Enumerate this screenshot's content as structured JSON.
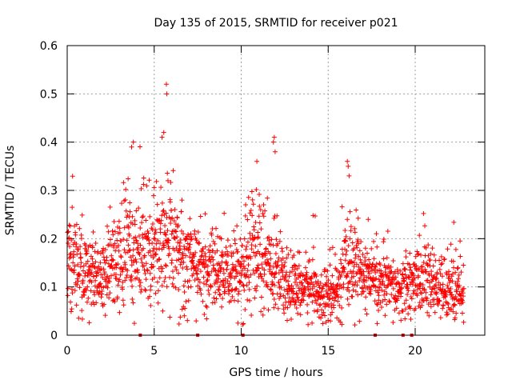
{
  "chart_data": {
    "type": "scatter",
    "title": "Day 135 of 2015, SRMTID for receiver p021",
    "xlabel": "GPS time / hours",
    "ylabel": "SRMTID / TECUs",
    "xlim": [
      0,
      24
    ],
    "ylim": [
      0,
      0.6
    ],
    "x_ticks": [
      0,
      5,
      10,
      15,
      20
    ],
    "x_tick_labels": [
      "0",
      "5",
      "10",
      "15",
      "20"
    ],
    "y_ticks": [
      0,
      0.1,
      0.2,
      0.3,
      0.4,
      0.5,
      0.6
    ],
    "y_tick_labels": [
      "0",
      "0.1",
      "0.2",
      "0.3",
      "0.4",
      "0.5",
      "0.6"
    ],
    "grid": true,
    "marker": "plus",
    "series_color": "#ff0000",
    "zero_markers_x": [
      4.2,
      7.5,
      10.1,
      17.7,
      19.3,
      19.8
    ],
    "trend": {
      "description": "approximate baseline SRMTID by hour (TECU)",
      "hours": [
        0,
        1,
        2,
        3,
        3.5,
        4,
        5,
        5.5,
        6,
        6.5,
        7,
        8,
        9,
        10,
        10.5,
        11,
        11.5,
        12,
        12.5,
        13,
        14,
        15,
        15.5,
        16,
        16.3,
        17,
        18,
        19,
        20,
        20.5,
        21,
        22,
        22.8
      ],
      "values": [
        0.17,
        0.12,
        0.12,
        0.15,
        0.19,
        0.17,
        0.19,
        0.2,
        0.2,
        0.18,
        0.15,
        0.14,
        0.12,
        0.12,
        0.18,
        0.19,
        0.16,
        0.13,
        0.1,
        0.1,
        0.1,
        0.08,
        0.09,
        0.14,
        0.16,
        0.13,
        0.11,
        0.09,
        0.11,
        0.12,
        0.1,
        0.1,
        0.09
      ]
    },
    "notable_points": [
      {
        "x": 3.7,
        "y": 0.39
      },
      {
        "x": 3.8,
        "y": 0.4
      },
      {
        "x": 5.45,
        "y": 0.41
      },
      {
        "x": 5.55,
        "y": 0.42
      },
      {
        "x": 5.7,
        "y": 0.52
      },
      {
        "x": 5.72,
        "y": 0.5
      },
      {
        "x": 10.9,
        "y": 0.36
      },
      {
        "x": 11.9,
        "y": 0.41
      },
      {
        "x": 11.85,
        "y": 0.4
      },
      {
        "x": 11.95,
        "y": 0.38
      },
      {
        "x": 16.1,
        "y": 0.36
      },
      {
        "x": 16.15,
        "y": 0.35
      },
      {
        "x": 16.2,
        "y": 0.33
      },
      {
        "x": 17.3,
        "y": 0.24
      }
    ]
  }
}
